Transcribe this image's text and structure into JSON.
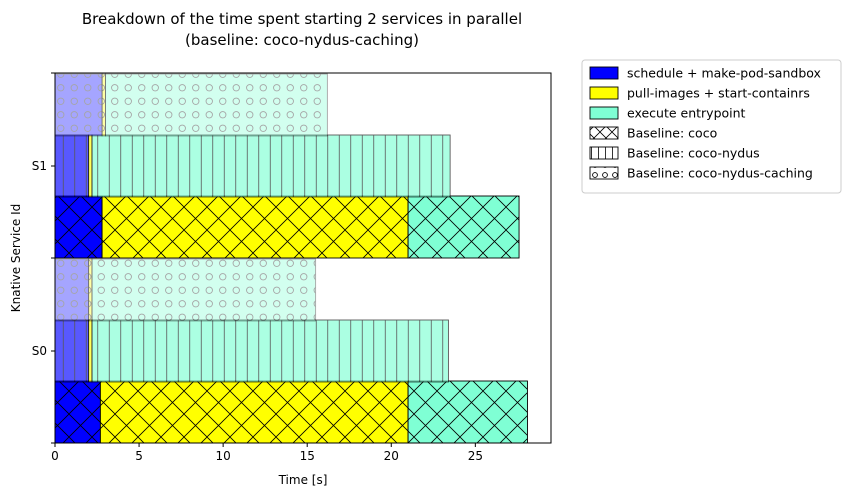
{
  "chart_data": {
    "type": "bar",
    "orientation": "horizontal",
    "stacked": true,
    "title": "Breakdown of the time spent starting 2 services in parallel\n(baseline: coco-nydus-caching)",
    "title_lines": [
      "Breakdown of the time spent starting 2 services in parallel",
      "(baseline: coco-nydus-caching)"
    ],
    "xlabel": "Time [s]",
    "ylabel": "Knative Service Id",
    "xlim": [
      0,
      29.5
    ],
    "xticks": [
      0,
      5,
      10,
      15,
      20,
      25
    ],
    "grid": false,
    "legend_position": "outside-upper-right",
    "services": [
      "S0",
      "S1"
    ],
    "stages": [
      {
        "name": "schedule + make-pod-sandbox",
        "color": "#0000ff"
      },
      {
        "name": "pull-images + start-containrs",
        "color": "#ffff00"
      },
      {
        "name": "execute entrypoint",
        "color": "#7fffd4"
      }
    ],
    "baselines": [
      {
        "name": "Baseline: coco",
        "hatch": "cross",
        "alpha": 1.0
      },
      {
        "name": "Baseline: coco-nydus",
        "hatch": "vertical",
        "alpha": 0.65
      },
      {
        "name": "Baseline: coco-nydus-caching",
        "hatch": "circles",
        "alpha": 0.35
      }
    ],
    "series": [
      {
        "service": "S0",
        "baseline": "Baseline: coco",
        "segments": [
          2.7,
          18.3,
          7.1
        ]
      },
      {
        "service": "S0",
        "baseline": "Baseline: coco-nydus",
        "segments": [
          2.0,
          0.2,
          21.2
        ]
      },
      {
        "service": "S0",
        "baseline": "Baseline: coco-nydus-caching",
        "segments": [
          2.0,
          0.2,
          13.3
        ]
      },
      {
        "service": "S1",
        "baseline": "Baseline: coco",
        "segments": [
          2.8,
          18.2,
          6.6
        ]
      },
      {
        "service": "S1",
        "baseline": "Baseline: coco-nydus",
        "segments": [
          2.0,
          0.2,
          21.3
        ]
      },
      {
        "service": "S1",
        "baseline": "Baseline: coco-nydus-caching",
        "segments": [
          2.8,
          0.2,
          13.2
        ]
      }
    ]
  }
}
